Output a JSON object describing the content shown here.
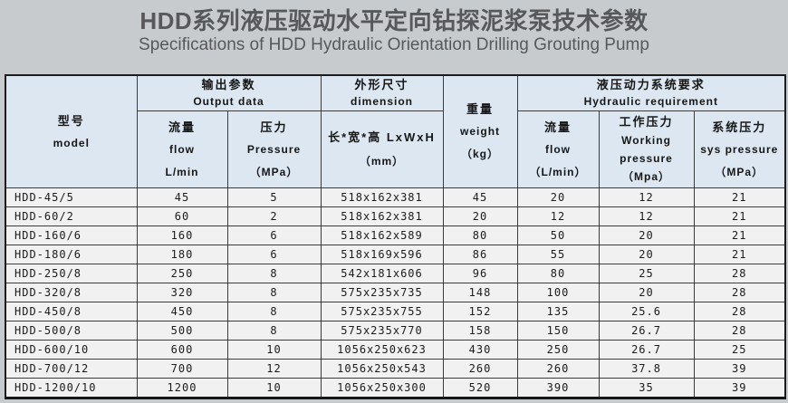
{
  "page": {
    "title": "HDD系列液压驱动水平定向钻探泥浆泵技术参数",
    "subtitle": "Specifications of HDD Hydraulic Orientation Drilling Grouting Pump"
  },
  "colors": {
    "page_bg": "#c8cbce",
    "header_bg": "#dce7f1",
    "cell_bg": "#f1f1f2",
    "border": "#3c3c3c",
    "title_text": "#57585a"
  },
  "table": {
    "header": {
      "model_zh": "型号",
      "model_en": "model",
      "output_zh": "输出参数",
      "output_en": "Output data",
      "flow_zh": "流量",
      "flow_en": "flow",
      "flow_unit": "L/min",
      "pressure_zh": "压力",
      "pressure_en": "Pressure",
      "pressure_unit": "（MPa）",
      "dim_zh": "外形尺寸",
      "dim_en": "dimension",
      "dim_sub": "长*宽*高 LxWxH",
      "dim_unit": "（mm）",
      "weight_zh": "重量",
      "weight_en": "weight",
      "weight_unit": "（kg）",
      "hyd_zh": "液压动力系统要求",
      "hyd_en": "Hydraulic requirement",
      "hydflow_zh": "流量",
      "hydflow_en": "flow",
      "hydflow_unit": "（L/min）",
      "workp_zh": "工作压力",
      "workp_en1": "Working",
      "workp_en2": "pressure",
      "workp_unit": "（Mpa）",
      "sysp_zh": "系统压力",
      "sysp_en": "sys pressure",
      "sysp_unit": "（MPa）"
    },
    "columns": [
      "model",
      "output_flow_L/min",
      "output_pressure_MPa",
      "dimension_LxWxH_mm",
      "weight_kg",
      "hydraulic_flow_L/min",
      "working_pressure_Mpa",
      "sys_pressure_MPa"
    ],
    "rows": [
      [
        "HDD-45/5",
        "45",
        "5",
        "518x162x381",
        "45",
        "20",
        "12",
        "21"
      ],
      [
        "HDD-60/2",
        "60",
        "2",
        "518x162x381",
        "20",
        "12",
        "12",
        "21"
      ],
      [
        "HDD-160/6",
        "160",
        "6",
        "518x162x589",
        "80",
        "50",
        "20",
        "21"
      ],
      [
        "HDD-180/6",
        "180",
        "6",
        "518x169x596",
        "86",
        "55",
        "20",
        "21"
      ],
      [
        "HDD-250/8",
        "250",
        "8",
        "542x181x606",
        "96",
        "80",
        "25",
        "28"
      ],
      [
        "HDD-320/8",
        "320",
        "8",
        "575x235x735",
        "148",
        "100",
        "20",
        "28"
      ],
      [
        "HDD-450/8",
        "450",
        "8",
        "575x235x755",
        "152",
        "135",
        "25.6",
        "28"
      ],
      [
        "HDD-500/8",
        "500",
        "8",
        "575x235x770",
        "158",
        "150",
        "26.7",
        "28"
      ],
      [
        "HDD-600/10",
        "600",
        "10",
        "1056x250x623",
        "430",
        "250",
        "26.7",
        "25"
      ],
      [
        "HDD-700/12",
        "700",
        "12",
        "1056x250x543",
        "260",
        "260",
        "37.8",
        "39"
      ],
      [
        "HDD-1200/10",
        "1200",
        "10",
        "1056x250x300",
        "520",
        "390",
        "35",
        "39"
      ]
    ]
  }
}
